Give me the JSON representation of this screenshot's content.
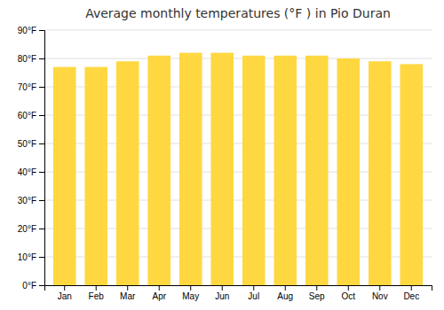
{
  "chart_data": {
    "type": "bar",
    "title": "Average monthly temperatures (°F ) in Pio Duran",
    "categories": [
      "Jan",
      "Feb",
      "Mar",
      "Apr",
      "May",
      "Jun",
      "Jul",
      "Aug",
      "Sep",
      "Oct",
      "Nov",
      "Dec"
    ],
    "values": [
      77,
      77,
      79,
      81,
      82,
      82,
      81,
      81,
      81,
      80,
      79,
      78
    ],
    "color": "#FFD740",
    "ylim": [
      0,
      90
    ],
    "yticks": [
      {
        "value": 0,
        "label": "0°F"
      },
      {
        "value": 10,
        "label": "10°F"
      },
      {
        "value": 20,
        "label": "20°F"
      },
      {
        "value": 30,
        "label": "30°F"
      },
      {
        "value": 40,
        "label": "40°F"
      },
      {
        "value": 50,
        "label": "50°F"
      },
      {
        "value": 60,
        "label": "60°F"
      },
      {
        "value": 70,
        "label": "70°F"
      },
      {
        "value": 80,
        "label": "80°F"
      },
      {
        "value": 90,
        "label": "90°F"
      }
    ],
    "grid": true
  }
}
